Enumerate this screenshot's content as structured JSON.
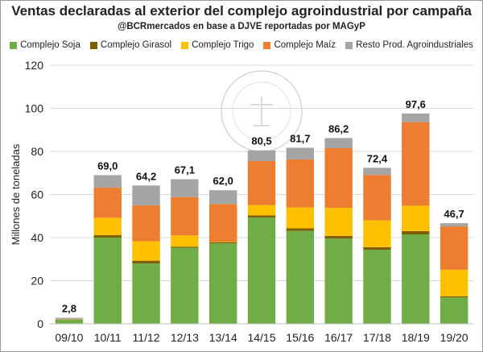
{
  "chart_data": {
    "type": "bar",
    "stacked": true,
    "title": "Ventas declaradas al exterior del complejo agroindustrial por campaña",
    "subtitle": "@BCRmercados en base a DJVE reportadas por MAGyP",
    "ylabel": "Millones de toneladas",
    "xlabel": "",
    "ylim": [
      0,
      120
    ],
    "yticks": [
      0,
      20,
      40,
      60,
      80,
      100,
      120
    ],
    "grid": true,
    "legend_position": "top",
    "watermark": "BOLSA DE COMERCIO DE ROSARIO",
    "categories": [
      "09/10",
      "10/11",
      "11/12",
      "12/13",
      "13/14",
      "14/15",
      "15/16",
      "16/17",
      "17/18",
      "18/19",
      "19/20"
    ],
    "series": [
      {
        "name": "Complejo Soja",
        "color": "#70ad47",
        "values": [
          1.9,
          40.0,
          28.0,
          35.3,
          37.3,
          49.3,
          43.1,
          39.5,
          34.3,
          41.5,
          12.3
        ]
      },
      {
        "name": "Complejo Girasol",
        "color": "#7f6000",
        "values": [
          0.1,
          1.2,
          1.3,
          0.5,
          0.6,
          1.0,
          1.2,
          1.3,
          1.3,
          1.5,
          0.5
        ]
      },
      {
        "name": "Complejo Trigo",
        "color": "#ffc000",
        "values": [
          0.1,
          8.0,
          9.0,
          5.2,
          0.2,
          4.8,
          9.7,
          13.0,
          12.4,
          11.8,
          12.3
        ]
      },
      {
        "name": "Complejo Maíz",
        "color": "#ed7d31",
        "values": [
          0.1,
          14.0,
          16.7,
          17.8,
          17.5,
          20.4,
          22.3,
          27.7,
          21.1,
          38.8,
          20.1
        ]
      },
      {
        "name": "Resto Prod. Agroindustriales",
        "color": "#a5a5a5",
        "values": [
          0.6,
          5.8,
          9.2,
          8.3,
          6.4,
          5.0,
          5.4,
          4.7,
          3.3,
          4.0,
          1.5
        ]
      }
    ],
    "totals": [
      "2,8",
      "69,0",
      "64,2",
      "67,1",
      "62,0",
      "80,5",
      "81,7",
      "86,2",
      "72,4",
      "97,6",
      "46,7"
    ]
  }
}
